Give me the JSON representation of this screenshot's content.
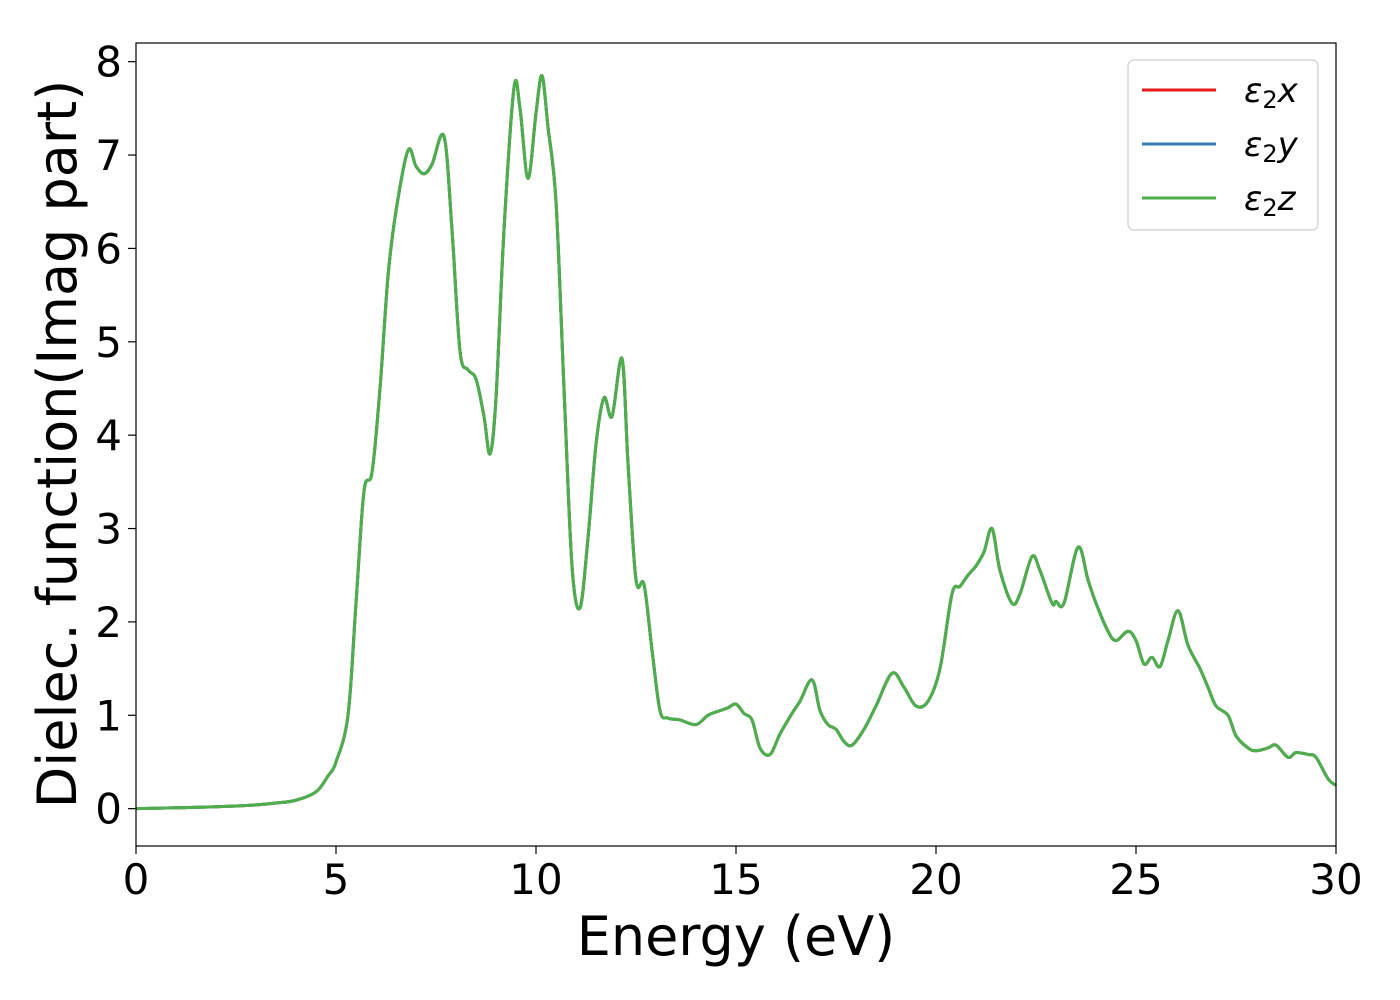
{
  "chart_data": {
    "type": "line",
    "title": "",
    "xlabel": "Energy (eV)",
    "ylabel": "Dielec. function(Imag part)",
    "xlim": [
      0,
      30
    ],
    "ylim": [
      -0.4,
      8.2
    ],
    "xticks": [
      "0",
      "5",
      "10",
      "15",
      "20",
      "25",
      "30"
    ],
    "yticks": [
      "0",
      "1",
      "2",
      "3",
      "4",
      "5",
      "6",
      "7",
      "8"
    ],
    "grid": false,
    "legend_position": "top-right",
    "series": [
      {
        "name_main": "ε",
        "name_sub": "2",
        "name_suffix": "x",
        "color": "#e41a1c",
        "x": [
          0,
          1,
          2,
          3,
          3.5,
          4,
          4.5,
          4.8,
          5.0,
          5.3,
          5.5,
          5.7,
          5.9,
          6.1,
          6.3,
          6.5,
          6.8,
          7.0,
          7.2,
          7.4,
          7.7,
          7.9,
          8.1,
          8.3,
          8.5,
          8.7,
          8.85,
          9.0,
          9.2,
          9.45,
          9.6,
          9.8,
          10.0,
          10.15,
          10.3,
          10.5,
          10.7,
          10.9,
          11.1,
          11.3,
          11.5,
          11.7,
          11.9,
          12.15,
          12.3,
          12.5,
          12.7,
          12.9,
          13.1,
          13.3,
          13.6,
          14.0,
          14.3,
          14.6,
          14.8,
          15.0,
          15.2,
          15.4,
          15.6,
          15.85,
          16.1,
          16.4,
          16.6,
          16.9,
          17.1,
          17.3,
          17.5,
          17.7,
          17.9,
          18.2,
          18.5,
          18.9,
          19.2,
          19.5,
          19.8,
          20.1,
          20.4,
          20.6,
          20.8,
          21.0,
          21.2,
          21.4,
          21.6,
          21.9,
          22.1,
          22.4,
          22.6,
          22.9,
          23.0,
          23.2,
          23.55,
          23.8,
          24.0,
          24.3,
          24.5,
          24.8,
          25.0,
          25.2,
          25.4,
          25.6,
          25.8,
          26.05,
          26.3,
          26.6,
          26.8,
          27.0,
          27.3,
          27.5,
          27.8,
          28.0,
          28.3,
          28.5,
          28.8,
          29.0,
          29.3,
          29.5,
          29.8,
          30.0
        ],
        "y": [
          0.0,
          0.01,
          0.02,
          0.04,
          0.06,
          0.09,
          0.18,
          0.35,
          0.5,
          1.0,
          2.2,
          3.4,
          3.6,
          4.5,
          5.7,
          6.4,
          7.05,
          6.88,
          6.8,
          6.9,
          7.2,
          6.2,
          4.9,
          4.7,
          4.6,
          4.2,
          3.8,
          4.4,
          6.2,
          7.72,
          7.5,
          6.75,
          7.45,
          7.85,
          7.3,
          6.5,
          4.5,
          2.6,
          2.15,
          2.9,
          3.9,
          4.4,
          4.2,
          4.82,
          3.7,
          2.45,
          2.4,
          1.7,
          1.05,
          0.97,
          0.95,
          0.9,
          1.0,
          1.05,
          1.08,
          1.12,
          1.02,
          0.95,
          0.65,
          0.58,
          0.8,
          1.02,
          1.15,
          1.38,
          1.05,
          0.9,
          0.85,
          0.72,
          0.68,
          0.85,
          1.1,
          1.45,
          1.3,
          1.1,
          1.15,
          1.5,
          2.3,
          2.38,
          2.5,
          2.6,
          2.75,
          3.0,
          2.55,
          2.2,
          2.3,
          2.7,
          2.55,
          2.2,
          2.22,
          2.2,
          2.8,
          2.45,
          2.2,
          1.9,
          1.8,
          1.9,
          1.8,
          1.55,
          1.62,
          1.52,
          1.8,
          2.12,
          1.75,
          1.5,
          1.3,
          1.1,
          1.0,
          0.78,
          0.65,
          0.62,
          0.65,
          0.68,
          0.55,
          0.6,
          0.58,
          0.55,
          0.32,
          0.25
        ]
      },
      {
        "name_main": "ε",
        "name_sub": "2",
        "name_suffix": "y",
        "color": "#377eb8",
        "x": [
          0,
          1,
          2,
          3,
          3.5,
          4,
          4.5,
          4.8,
          5.0,
          5.3,
          5.5,
          5.7,
          5.9,
          6.1,
          6.3,
          6.5,
          6.8,
          7.0,
          7.2,
          7.4,
          7.7,
          7.9,
          8.1,
          8.3,
          8.5,
          8.7,
          8.85,
          9.0,
          9.2,
          9.45,
          9.6,
          9.8,
          10.0,
          10.15,
          10.3,
          10.5,
          10.7,
          10.9,
          11.1,
          11.3,
          11.5,
          11.7,
          11.9,
          12.15,
          12.3,
          12.5,
          12.7,
          12.9,
          13.1,
          13.3,
          13.6,
          14.0,
          14.3,
          14.6,
          14.8,
          15.0,
          15.2,
          15.4,
          15.6,
          15.85,
          16.1,
          16.4,
          16.6,
          16.9,
          17.1,
          17.3,
          17.5,
          17.7,
          17.9,
          18.2,
          18.5,
          18.9,
          19.2,
          19.5,
          19.8,
          20.1,
          20.4,
          20.6,
          20.8,
          21.0,
          21.2,
          21.4,
          21.6,
          21.9,
          22.1,
          22.4,
          22.6,
          22.9,
          23.0,
          23.2,
          23.55,
          23.8,
          24.0,
          24.3,
          24.5,
          24.8,
          25.0,
          25.2,
          25.4,
          25.6,
          25.8,
          26.05,
          26.3,
          26.6,
          26.8,
          27.0,
          27.3,
          27.5,
          27.8,
          28.0,
          28.3,
          28.5,
          28.8,
          29.0,
          29.3,
          29.5,
          29.8,
          30.0
        ],
        "y": [
          0.0,
          0.01,
          0.02,
          0.04,
          0.06,
          0.09,
          0.18,
          0.35,
          0.5,
          1.0,
          2.2,
          3.4,
          3.6,
          4.5,
          5.7,
          6.4,
          7.05,
          6.88,
          6.8,
          6.9,
          7.2,
          6.2,
          4.9,
          4.7,
          4.6,
          4.2,
          3.8,
          4.4,
          6.2,
          7.72,
          7.5,
          6.75,
          7.45,
          7.85,
          7.3,
          6.5,
          4.5,
          2.6,
          2.15,
          2.9,
          3.9,
          4.4,
          4.2,
          4.82,
          3.7,
          2.45,
          2.4,
          1.7,
          1.05,
          0.97,
          0.95,
          0.9,
          1.0,
          1.05,
          1.08,
          1.12,
          1.02,
          0.95,
          0.65,
          0.58,
          0.8,
          1.02,
          1.15,
          1.38,
          1.05,
          0.9,
          0.85,
          0.72,
          0.68,
          0.85,
          1.1,
          1.45,
          1.3,
          1.1,
          1.15,
          1.5,
          2.3,
          2.38,
          2.5,
          2.6,
          2.75,
          3.0,
          2.55,
          2.2,
          2.3,
          2.7,
          2.55,
          2.2,
          2.22,
          2.2,
          2.8,
          2.45,
          2.2,
          1.9,
          1.8,
          1.9,
          1.8,
          1.55,
          1.62,
          1.52,
          1.8,
          2.12,
          1.75,
          1.5,
          1.3,
          1.1,
          1.0,
          0.78,
          0.65,
          0.62,
          0.65,
          0.68,
          0.55,
          0.6,
          0.58,
          0.55,
          0.32,
          0.25
        ]
      },
      {
        "name_main": "ε",
        "name_sub": "2",
        "name_suffix": "z",
        "color": "#4daf4a",
        "x": [
          0,
          1,
          2,
          3,
          3.5,
          4,
          4.5,
          4.8,
          5.0,
          5.3,
          5.5,
          5.7,
          5.9,
          6.1,
          6.3,
          6.5,
          6.8,
          7.0,
          7.2,
          7.4,
          7.7,
          7.9,
          8.1,
          8.3,
          8.5,
          8.7,
          8.85,
          9.0,
          9.2,
          9.45,
          9.6,
          9.8,
          10.0,
          10.15,
          10.3,
          10.5,
          10.7,
          10.9,
          11.1,
          11.3,
          11.5,
          11.7,
          11.9,
          12.15,
          12.3,
          12.5,
          12.7,
          12.9,
          13.1,
          13.3,
          13.6,
          14.0,
          14.3,
          14.6,
          14.8,
          15.0,
          15.2,
          15.4,
          15.6,
          15.85,
          16.1,
          16.4,
          16.6,
          16.9,
          17.1,
          17.3,
          17.5,
          17.7,
          17.9,
          18.2,
          18.5,
          18.9,
          19.2,
          19.5,
          19.8,
          20.1,
          20.4,
          20.6,
          20.8,
          21.0,
          21.2,
          21.4,
          21.6,
          21.9,
          22.1,
          22.4,
          22.6,
          22.9,
          23.0,
          23.2,
          23.55,
          23.8,
          24.0,
          24.3,
          24.5,
          24.8,
          25.0,
          25.2,
          25.4,
          25.6,
          25.8,
          26.05,
          26.3,
          26.6,
          26.8,
          27.0,
          27.3,
          27.5,
          27.8,
          28.0,
          28.3,
          28.5,
          28.8,
          29.0,
          29.3,
          29.5,
          29.8,
          30.0
        ],
        "y": [
          0.0,
          0.01,
          0.02,
          0.04,
          0.06,
          0.09,
          0.18,
          0.35,
          0.5,
          1.0,
          2.2,
          3.4,
          3.6,
          4.5,
          5.7,
          6.4,
          7.05,
          6.88,
          6.8,
          6.9,
          7.2,
          6.2,
          4.9,
          4.7,
          4.6,
          4.2,
          3.8,
          4.4,
          6.2,
          7.72,
          7.5,
          6.75,
          7.45,
          7.85,
          7.3,
          6.5,
          4.5,
          2.6,
          2.15,
          2.9,
          3.9,
          4.4,
          4.2,
          4.82,
          3.7,
          2.45,
          2.4,
          1.7,
          1.05,
          0.97,
          0.95,
          0.9,
          1.0,
          1.05,
          1.08,
          1.12,
          1.02,
          0.95,
          0.65,
          0.58,
          0.8,
          1.02,
          1.15,
          1.38,
          1.05,
          0.9,
          0.85,
          0.72,
          0.68,
          0.85,
          1.1,
          1.45,
          1.3,
          1.1,
          1.15,
          1.5,
          2.3,
          2.38,
          2.5,
          2.6,
          2.75,
          3.0,
          2.55,
          2.2,
          2.3,
          2.7,
          2.55,
          2.2,
          2.22,
          2.2,
          2.8,
          2.45,
          2.2,
          1.9,
          1.8,
          1.9,
          1.8,
          1.55,
          1.62,
          1.52,
          1.8,
          2.12,
          1.75,
          1.5,
          1.3,
          1.1,
          1.0,
          0.78,
          0.65,
          0.62,
          0.65,
          0.68,
          0.55,
          0.6,
          0.58,
          0.55,
          0.32,
          0.25
        ]
      }
    ]
  }
}
